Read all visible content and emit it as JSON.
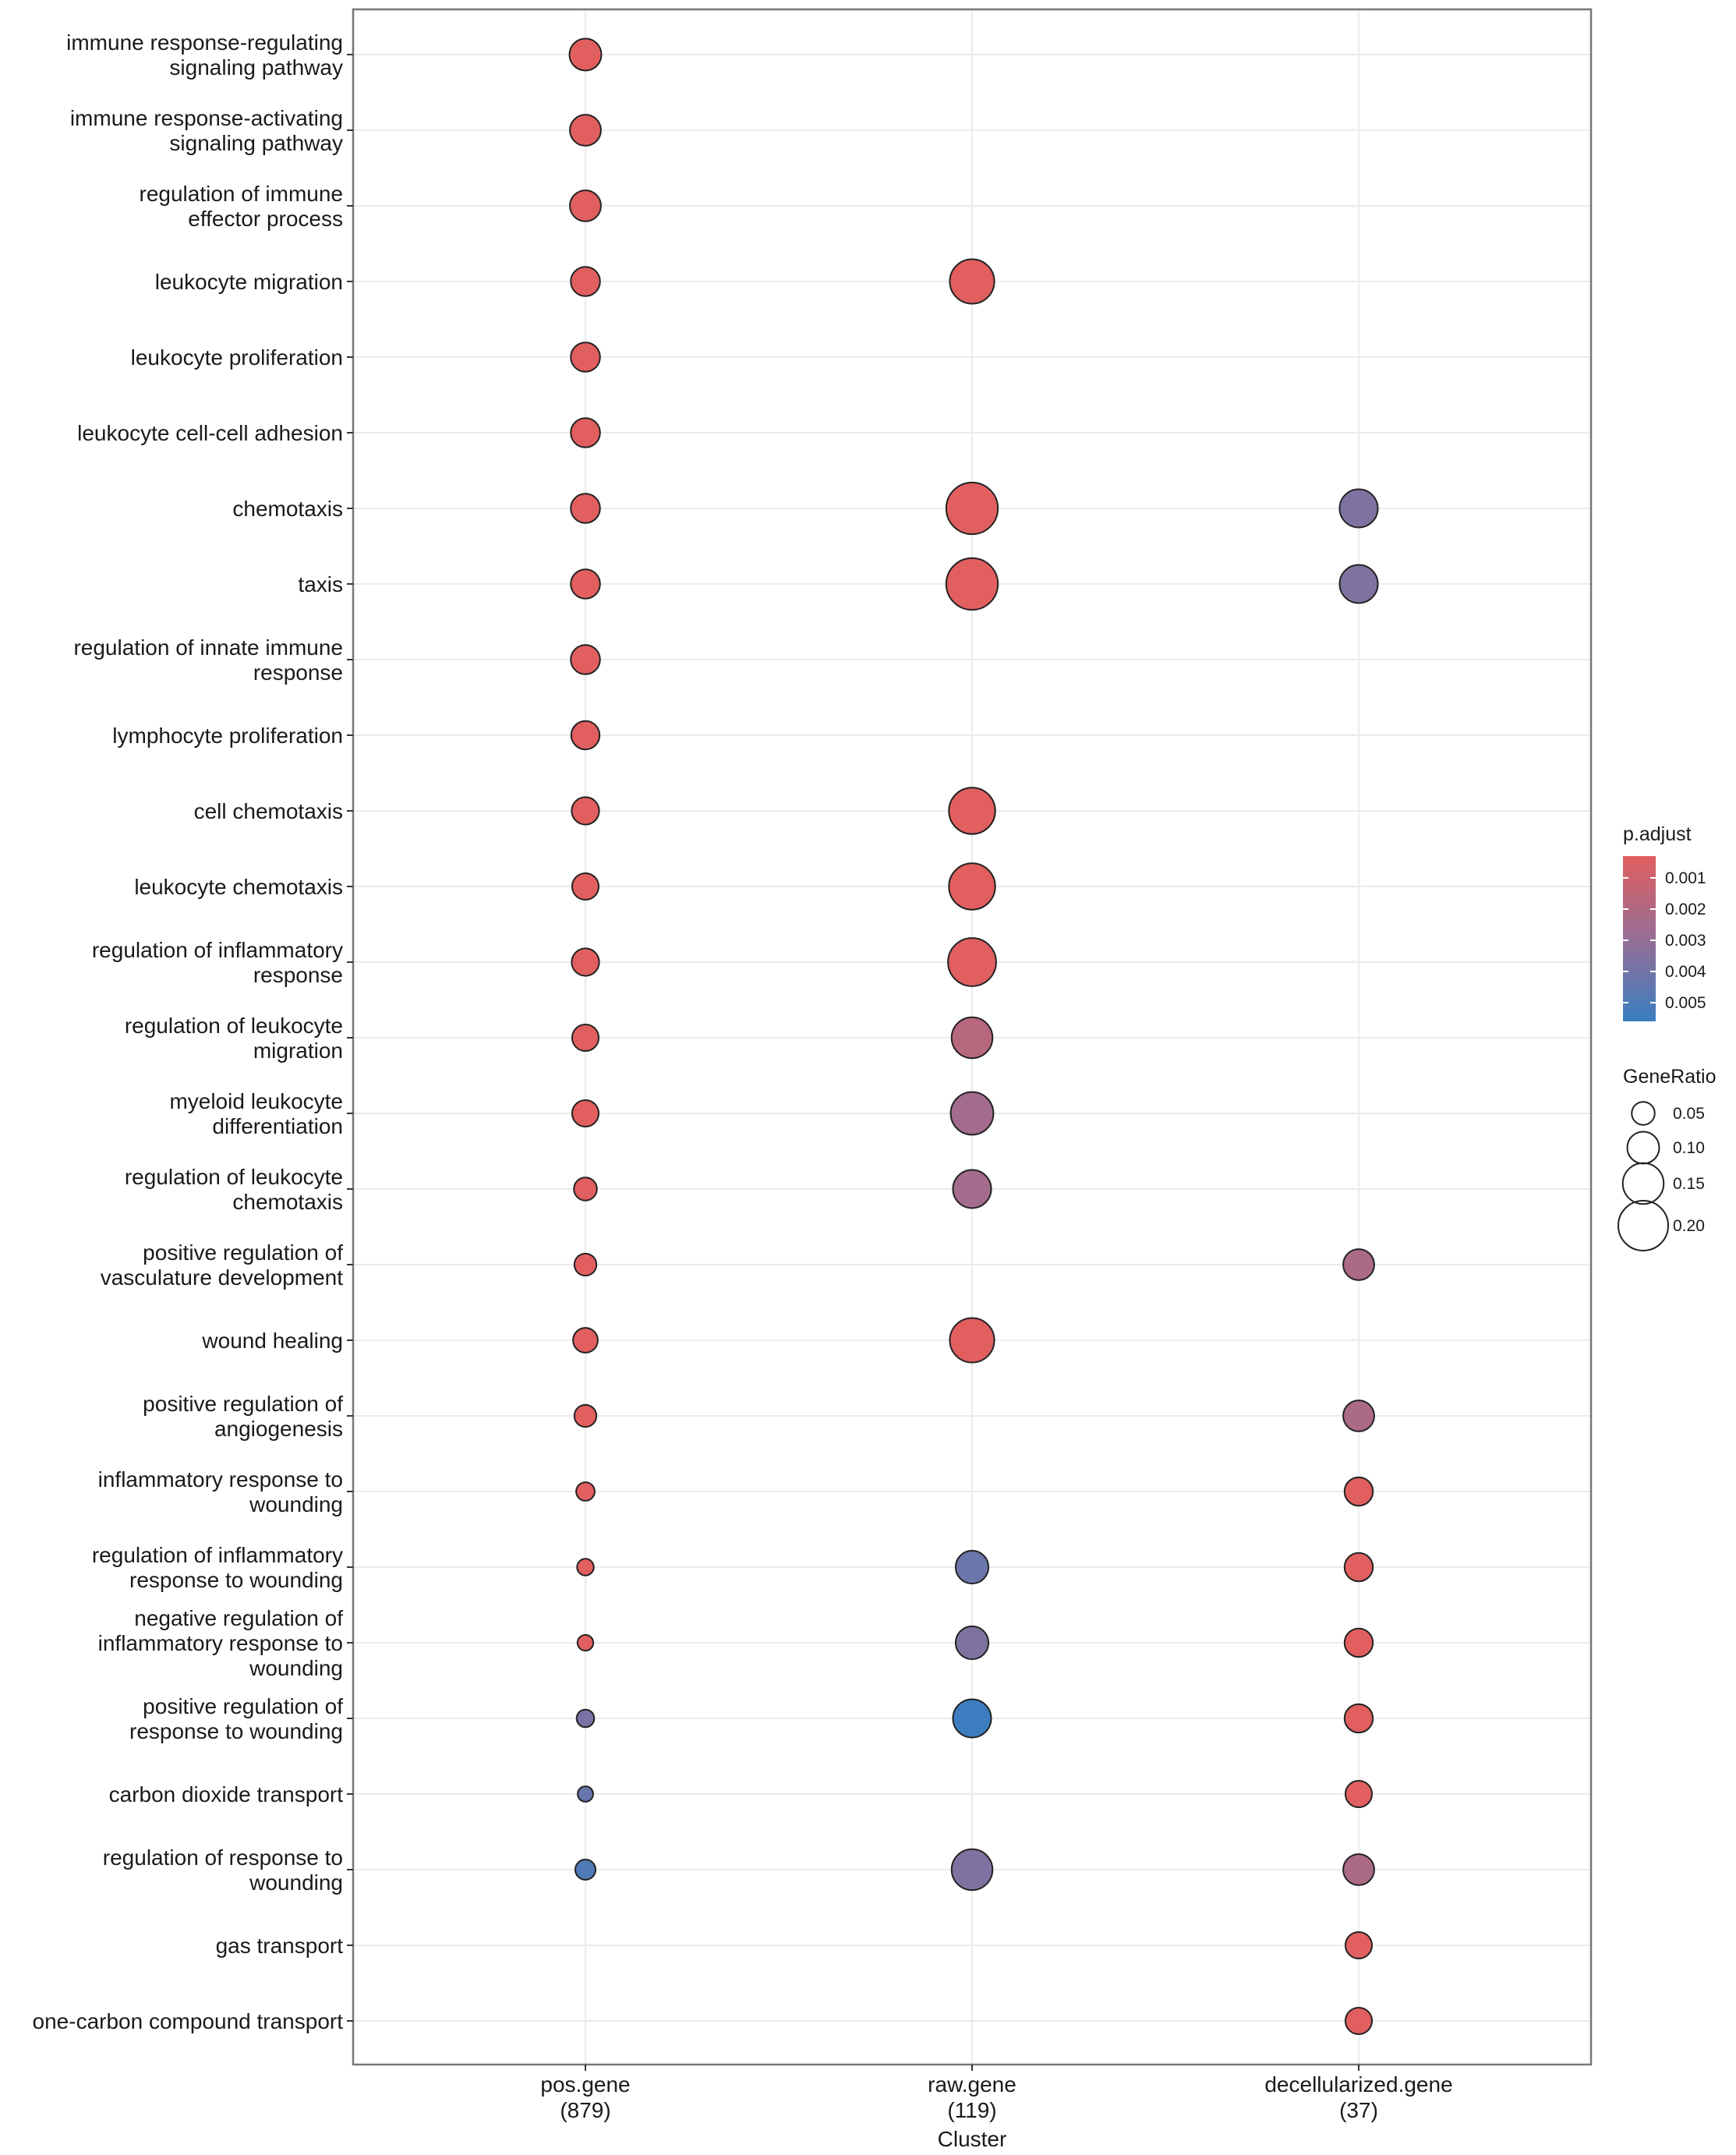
{
  "chart_data": {
    "type": "scatter",
    "subtype": "dotplot",
    "xlabel": "Cluster",
    "ylabel": "",
    "clusters": [
      {
        "name": "pos.gene",
        "count": "(879)"
      },
      {
        "name": "raw.gene",
        "count": "(119)"
      },
      {
        "name": "decellularized.gene",
        "count": "(37)"
      }
    ],
    "terms": [
      {
        "label": [
          "immune response-regulating",
          "signaling pathway"
        ],
        "points": [
          {
            "cluster": 0,
            "gene_ratio": 0.1,
            "p_adjust": 0.0003
          }
        ]
      },
      {
        "label": [
          "immune response-activating",
          "signaling pathway"
        ],
        "points": [
          {
            "cluster": 0,
            "gene_ratio": 0.095,
            "p_adjust": 0.0003
          }
        ]
      },
      {
        "label": [
          "regulation of immune",
          "effector process"
        ],
        "points": [
          {
            "cluster": 0,
            "gene_ratio": 0.095,
            "p_adjust": 0.0003
          }
        ]
      },
      {
        "label": [
          "leukocyte migration"
        ],
        "points": [
          {
            "cluster": 0,
            "gene_ratio": 0.085,
            "p_adjust": 0.0003
          },
          {
            "cluster": 1,
            "gene_ratio": 0.17,
            "p_adjust": 0.0003
          }
        ]
      },
      {
        "label": [
          "leukocyte proliferation"
        ],
        "points": [
          {
            "cluster": 0,
            "gene_ratio": 0.085,
            "p_adjust": 0.0003
          }
        ]
      },
      {
        "label": [
          "leukocyte cell-cell adhesion"
        ],
        "points": [
          {
            "cluster": 0,
            "gene_ratio": 0.085,
            "p_adjust": 0.0003
          }
        ]
      },
      {
        "label": [
          "chemotaxis"
        ],
        "points": [
          {
            "cluster": 0,
            "gene_ratio": 0.085,
            "p_adjust": 0.0003
          },
          {
            "cluster": 1,
            "gene_ratio": 0.21,
            "p_adjust": 0.0003
          },
          {
            "cluster": 2,
            "gene_ratio": 0.135,
            "p_adjust": 0.0036
          }
        ]
      },
      {
        "label": [
          "taxis"
        ],
        "points": [
          {
            "cluster": 0,
            "gene_ratio": 0.085,
            "p_adjust": 0.0003
          },
          {
            "cluster": 1,
            "gene_ratio": 0.21,
            "p_adjust": 0.0003
          },
          {
            "cluster": 2,
            "gene_ratio": 0.135,
            "p_adjust": 0.0036
          }
        ]
      },
      {
        "label": [
          "regulation of innate immune",
          "response"
        ],
        "points": [
          {
            "cluster": 0,
            "gene_ratio": 0.085,
            "p_adjust": 0.0003
          }
        ]
      },
      {
        "label": [
          "lymphocyte proliferation"
        ],
        "points": [
          {
            "cluster": 0,
            "gene_ratio": 0.08,
            "p_adjust": 0.0003
          }
        ]
      },
      {
        "label": [
          "cell chemotaxis"
        ],
        "points": [
          {
            "cluster": 0,
            "gene_ratio": 0.075,
            "p_adjust": 0.0003
          },
          {
            "cluster": 1,
            "gene_ratio": 0.18,
            "p_adjust": 0.0003
          }
        ]
      },
      {
        "label": [
          "leukocyte chemotaxis"
        ],
        "points": [
          {
            "cluster": 0,
            "gene_ratio": 0.07,
            "p_adjust": 0.0003
          },
          {
            "cluster": 1,
            "gene_ratio": 0.18,
            "p_adjust": 0.0003
          }
        ]
      },
      {
        "label": [
          "regulation of inflammatory",
          "response"
        ],
        "points": [
          {
            "cluster": 0,
            "gene_ratio": 0.075,
            "p_adjust": 0.0003
          },
          {
            "cluster": 1,
            "gene_ratio": 0.19,
            "p_adjust": 0.0003
          }
        ]
      },
      {
        "label": [
          "regulation of leukocyte",
          "migration"
        ],
        "points": [
          {
            "cluster": 0,
            "gene_ratio": 0.07,
            "p_adjust": 0.0003
          },
          {
            "cluster": 1,
            "gene_ratio": 0.15,
            "p_adjust": 0.0018
          }
        ]
      },
      {
        "label": [
          "myeloid leukocyte",
          "differentiation"
        ],
        "points": [
          {
            "cluster": 0,
            "gene_ratio": 0.07,
            "p_adjust": 0.0003
          },
          {
            "cluster": 1,
            "gene_ratio": 0.16,
            "p_adjust": 0.0025
          }
        ]
      },
      {
        "label": [
          "regulation of leukocyte",
          "chemotaxis"
        ],
        "points": [
          {
            "cluster": 0,
            "gene_ratio": 0.05,
            "p_adjust": 0.0003
          },
          {
            "cluster": 1,
            "gene_ratio": 0.135,
            "p_adjust": 0.0025
          }
        ]
      },
      {
        "label": [
          "positive regulation of",
          "vasculature development"
        ],
        "points": [
          {
            "cluster": 0,
            "gene_ratio": 0.045,
            "p_adjust": 0.0003
          },
          {
            "cluster": 2,
            "gene_ratio": 0.095,
            "p_adjust": 0.0022
          }
        ]
      },
      {
        "label": [
          "wound healing"
        ],
        "points": [
          {
            "cluster": 0,
            "gene_ratio": 0.06,
            "p_adjust": 0.0003
          },
          {
            "cluster": 1,
            "gene_ratio": 0.17,
            "p_adjust": 0.0003
          }
        ]
      },
      {
        "label": [
          "positive regulation of",
          "angiogenesis"
        ],
        "points": [
          {
            "cluster": 0,
            "gene_ratio": 0.045,
            "p_adjust": 0.0003
          },
          {
            "cluster": 2,
            "gene_ratio": 0.095,
            "p_adjust": 0.0022
          }
        ]
      },
      {
        "label": [
          "inflammatory response to",
          "wounding"
        ],
        "points": [
          {
            "cluster": 0,
            "gene_ratio": 0.025,
            "p_adjust": 0.0003
          },
          {
            "cluster": 2,
            "gene_ratio": 0.08,
            "p_adjust": 0.0003
          }
        ]
      },
      {
        "label": [
          "regulation of inflammatory",
          "response to wounding"
        ],
        "points": [
          {
            "cluster": 0,
            "gene_ratio": 0.015,
            "p_adjust": 0.0003
          },
          {
            "cluster": 1,
            "gene_ratio": 0.105,
            "p_adjust": 0.0042
          },
          {
            "cluster": 2,
            "gene_ratio": 0.08,
            "p_adjust": 0.0003
          }
        ]
      },
      {
        "label": [
          "negative regulation of",
          "inflammatory response to",
          "wounding"
        ],
        "points": [
          {
            "cluster": 0,
            "gene_ratio": 0.01,
            "p_adjust": 0.0003
          },
          {
            "cluster": 1,
            "gene_ratio": 0.105,
            "p_adjust": 0.0036
          },
          {
            "cluster": 2,
            "gene_ratio": 0.08,
            "p_adjust": 0.0003
          }
        ]
      },
      {
        "label": [
          "positive regulation of",
          "response to wounding"
        ],
        "points": [
          {
            "cluster": 0,
            "gene_ratio": 0.02,
            "p_adjust": 0.0038
          },
          {
            "cluster": 1,
            "gene_ratio": 0.135,
            "p_adjust": 0.0055
          },
          {
            "cluster": 2,
            "gene_ratio": 0.08,
            "p_adjust": 0.0003
          }
        ]
      },
      {
        "label": [
          "carbon dioxide transport"
        ],
        "points": [
          {
            "cluster": 0,
            "gene_ratio": 0.008,
            "p_adjust": 0.0043
          },
          {
            "cluster": 2,
            "gene_ratio": 0.07,
            "p_adjust": 0.0003
          }
        ]
      },
      {
        "label": [
          "regulation of response to",
          "wounding"
        ],
        "points": [
          {
            "cluster": 0,
            "gene_ratio": 0.035,
            "p_adjust": 0.005
          },
          {
            "cluster": 1,
            "gene_ratio": 0.15,
            "p_adjust": 0.0036
          },
          {
            "cluster": 2,
            "gene_ratio": 0.095,
            "p_adjust": 0.0022
          }
        ]
      },
      {
        "label": [
          "gas transport"
        ],
        "points": [
          {
            "cluster": 2,
            "gene_ratio": 0.07,
            "p_adjust": 0.0003
          }
        ]
      },
      {
        "label": [
          "one-carbon compound transport"
        ],
        "points": [
          {
            "cluster": 2,
            "gene_ratio": 0.07,
            "p_adjust": 0.0003
          }
        ]
      }
    ],
    "legend_color": {
      "title": "p.adjust",
      "placement": "right",
      "ticks": [
        "0.001",
        "0.002",
        "0.003",
        "0.004",
        "0.005"
      ],
      "tick_values": [
        0.001,
        0.002,
        0.003,
        0.004,
        0.005
      ],
      "range": [
        0.0003,
        0.0056
      ],
      "low_color": "#e15f5f",
      "high_color": "#3a7ec1"
    },
    "legend_size": {
      "title": "GeneRatio",
      "placement": "right",
      "ticks": [
        "0.05",
        "0.10",
        "0.15",
        "0.20"
      ],
      "tick_values": [
        0.05,
        0.1,
        0.15,
        0.2
      ]
    },
    "colors": {
      "panel_border": "#777777",
      "grid": "#ebebeb",
      "point_stroke": "#222222"
    }
  }
}
